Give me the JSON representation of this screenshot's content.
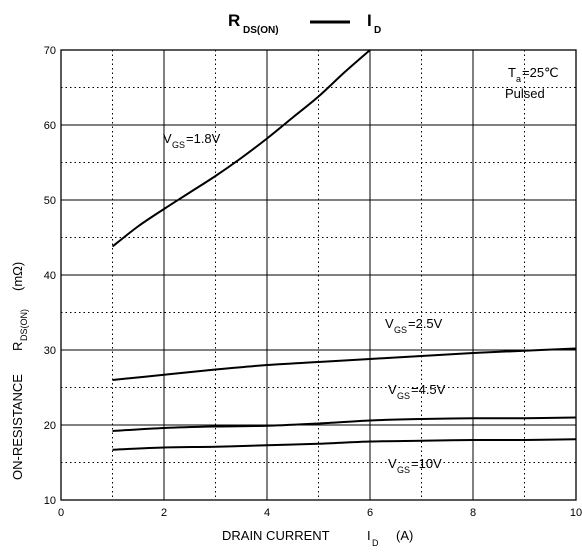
{
  "chart_data": {
    "type": "line",
    "title": {
      "left_main": "R",
      "left_sub": "DS(ON)",
      "right_main": "I",
      "right_sub": "D"
    },
    "xlabel": {
      "text": "DRAIN CURRENT",
      "symbol_main": "I",
      "symbol_sub": "D",
      "unit": "(A)"
    },
    "ylabel": {
      "text": "ON-RESISTANCE",
      "symbol_main": "R",
      "symbol_sub": "DS(ON)",
      "unit": "(mΩ)"
    },
    "xlim": [
      0,
      10
    ],
    "ylim": [
      10,
      70
    ],
    "x_ticks": [
      "0",
      "2",
      "4",
      "6",
      "8",
      "10"
    ],
    "y_ticks": [
      "10",
      "20",
      "30",
      "40",
      "50",
      "60",
      "70"
    ],
    "grid": "solid major, dotted minor",
    "conditions": {
      "ta_main": "T",
      "ta_sub": "a",
      "ta_value": "=25℃",
      "mode": "Pulsed"
    },
    "series": [
      {
        "label_main": "V",
        "label_sub": "GS",
        "label_value": "=1.8V",
        "x": [
          1,
          1.5,
          2,
          2.5,
          3,
          3.5,
          4,
          4.5,
          5,
          5.5,
          6
        ],
        "y": [
          43.8,
          46.5,
          48.8,
          51.0,
          53.2,
          55.6,
          58.2,
          61.0,
          63.8,
          67.0,
          70.0
        ]
      },
      {
        "label_main": "V",
        "label_sub": "GS",
        "label_value": "=2.5V",
        "x": [
          1,
          2,
          3,
          4,
          5,
          6,
          7,
          8,
          9,
          10
        ],
        "y": [
          26.0,
          26.7,
          27.4,
          28.0,
          28.4,
          28.8,
          29.2,
          29.6,
          29.9,
          30.2
        ]
      },
      {
        "label_main": "V",
        "label_sub": "GS",
        "label_value": "=4.5V",
        "x": [
          1,
          2,
          3,
          4,
          5,
          6,
          7,
          8,
          9,
          10
        ],
        "y": [
          19.2,
          19.6,
          19.8,
          19.9,
          20.2,
          20.6,
          20.8,
          20.9,
          20.9,
          21.0
        ]
      },
      {
        "label_main": "V",
        "label_sub": "GS",
        "label_value": "=10V",
        "x": [
          1,
          2,
          3,
          4,
          5,
          6,
          7,
          8,
          9,
          10
        ],
        "y": [
          16.7,
          17.0,
          17.1,
          17.3,
          17.5,
          17.8,
          17.9,
          18.0,
          18.0,
          18.1
        ]
      }
    ]
  }
}
